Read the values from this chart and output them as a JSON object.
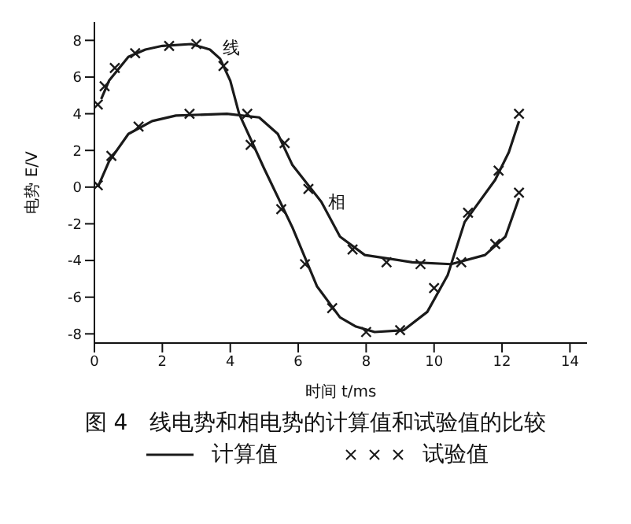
{
  "chart_data": {
    "type": "line",
    "title": "图 4　线电势和相电势的计算值和试验值的比较",
    "xlabel": "时间 t/ms",
    "ylabel": "电势 E/V",
    "xlim": [
      0,
      14.5
    ],
    "xticks": [
      0,
      2,
      4,
      6,
      8,
      10,
      12,
      14
    ],
    "ylim": [
      -8.5,
      9
    ],
    "yticks": [
      -8,
      -6,
      -4,
      -2,
      0,
      2,
      4,
      6,
      8
    ],
    "grid": false,
    "legend": "bottom",
    "annotations": [
      {
        "text": "线",
        "x": 3.6,
        "y": 7.6
      },
      {
        "text": "相",
        "x": 6.7,
        "y": -0.8
      }
    ],
    "series": [
      {
        "name": "计算值",
        "color": "#1a1a1a",
        "line_style": "solid",
        "marker": "none",
        "x": [
          0.2,
          0.43,
          1.0,
          1.5,
          2.0,
          2.85,
          3.4,
          3.7,
          4.0,
          4.26,
          5.0,
          5.83,
          6.55,
          7.23,
          7.7,
          8.25,
          9.1,
          9.8,
          10.4,
          10.9,
          11.8,
          12.2,
          12.5
        ],
        "values": [
          4.8,
          5.8,
          7.1,
          7.5,
          7.7,
          7.8,
          7.5,
          7.0,
          5.8,
          4.0,
          1.0,
          -2.2,
          -5.4,
          -7.1,
          -7.6,
          -7.9,
          -7.8,
          -6.8,
          -4.8,
          -1.9,
          0.4,
          1.9,
          3.6
        ]
      },
      {
        "color": "#1a1a1a",
        "line_style": "solid",
        "marker": "none",
        "x": [
          0.1,
          0.43,
          1.0,
          1.7,
          2.4,
          3.9,
          4.85,
          5.4,
          5.83,
          6.68,
          7.23,
          7.96,
          9.36,
          10.5,
          11.5,
          12.1,
          12.5
        ],
        "values": [
          0.0,
          1.4,
          2.9,
          3.6,
          3.9,
          4.0,
          3.8,
          2.9,
          1.2,
          -0.8,
          -2.7,
          -3.7,
          -4.1,
          -4.2,
          -3.7,
          -2.7,
          -0.6
        ]
      },
      {
        "name": "试验值",
        "type": "scatter",
        "color": "#1a1a1a",
        "marker": "cross",
        "x": [
          0.1,
          0.3,
          0.6,
          1.2,
          2.2,
          3.0,
          3.8,
          4.6,
          5.5,
          6.2,
          7.0,
          8.0,
          9.0,
          10.0,
          11.0,
          11.9,
          12.5,
          0.1,
          0.5,
          1.3,
          2.8,
          4.5,
          5.6,
          6.3,
          7.6,
          8.6,
          9.6,
          10.8,
          11.8,
          12.5
        ],
        "values": [
          4.5,
          5.5,
          6.5,
          7.3,
          7.7,
          7.8,
          6.6,
          2.3,
          -1.2,
          -4.2,
          -6.6,
          -7.9,
          -7.8,
          -5.5,
          -1.4,
          0.9,
          4.0,
          0.1,
          1.7,
          3.3,
          4.0,
          4.0,
          2.4,
          -0.1,
          -3.4,
          -4.1,
          -4.2,
          -4.1,
          -3.1,
          -0.3
        ]
      }
    ]
  }
}
